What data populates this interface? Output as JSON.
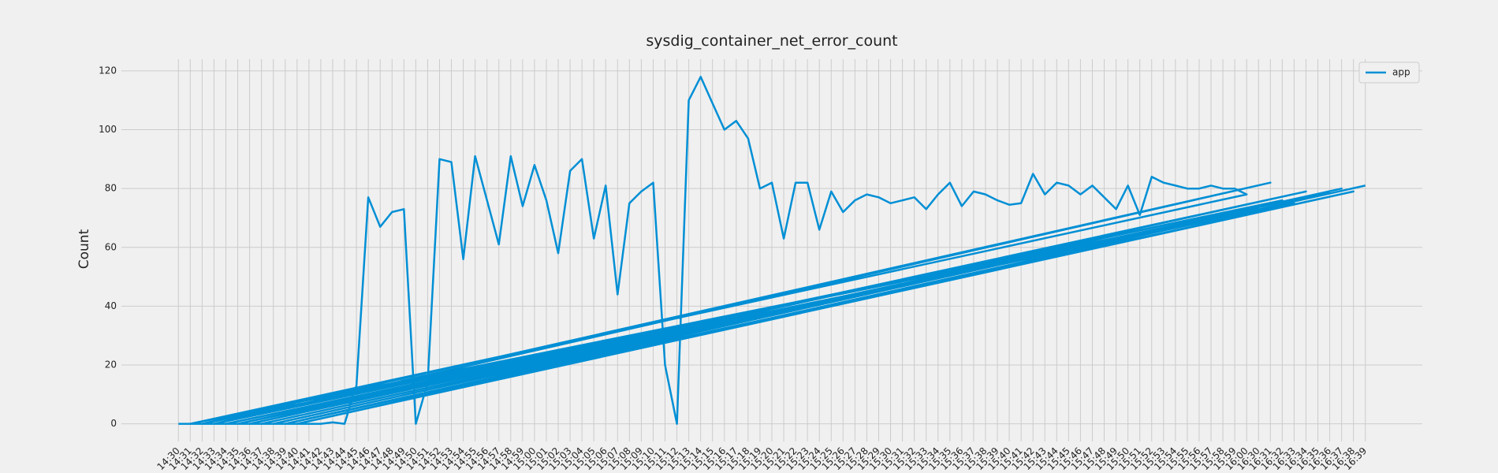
{
  "chart_data": {
    "type": "line",
    "title": "sysdig_container_net_error_count",
    "ylabel": "Count",
    "x": [
      "14:30",
      "14:31",
      "14:32",
      "14:33",
      "14:34",
      "14:35",
      "14:36",
      "14:37",
      "14:38",
      "14:39",
      "14:40",
      "14:41",
      "14:42",
      "14:43",
      "14:44",
      "14:45",
      "14:46",
      "14:47",
      "14:48",
      "14:49",
      "14:50",
      "14:51",
      "14:52",
      "14:53",
      "14:54",
      "14:55",
      "14:56",
      "14:57",
      "14:58",
      "14:59",
      "15:00",
      "15:01",
      "15:02",
      "15:03",
      "15:04",
      "15:05",
      "15:06",
      "15:07",
      "15:08",
      "15:09",
      "15:10",
      "15:11",
      "15:12",
      "15:13",
      "15:14",
      "15:15",
      "15:16",
      "15:17",
      "15:18",
      "15:19",
      "15:20",
      "15:21",
      "15:22",
      "15:23",
      "15:24",
      "15:25",
      "15:26",
      "15:27",
      "15:28",
      "15:29",
      "15:30",
      "15:31",
      "15:32",
      "15:33",
      "15:34",
      "15:35",
      "15:36",
      "15:37",
      "15:38",
      "15:39",
      "15:40",
      "15:41",
      "15:42",
      "15:43",
      "15:44",
      "15:45",
      "15:46",
      "15:47",
      "15:48",
      "15:49",
      "15:50",
      "15:51",
      "15:52",
      "15:53",
      "15:54",
      "15:55",
      "15:56",
      "15:57",
      "15:58",
      "15:59",
      "16:00",
      "14:31",
      "16:30",
      "14:32",
      "16:31",
      "14:33",
      "16:32",
      "14:34",
      "16:33",
      "14:35",
      "16:34",
      "14:36",
      "16:35",
      "14:37",
      "16:36",
      "14:38",
      "16:37",
      "14:39",
      "16:38",
      "14:40",
      "16:39"
    ],
    "series": [
      {
        "name": "app",
        "color": "#008fd5",
        "values": [
          0,
          0,
          0,
          0,
          0,
          0,
          0,
          0,
          0,
          0,
          0,
          0,
          0,
          0.5,
          0,
          13,
          77,
          67,
          72,
          73,
          0,
          14,
          90,
          89,
          56,
          91,
          76,
          61,
          91,
          74,
          88,
          76,
          58,
          86,
          90,
          63,
          81,
          44,
          75,
          79,
          82,
          20,
          0,
          110,
          118,
          109,
          100,
          103,
          97,
          80,
          82,
          63,
          82,
          82,
          66,
          79,
          72,
          76,
          78,
          77,
          75,
          76,
          77,
          73,
          78,
          82,
          74,
          79,
          78,
          76,
          74.5,
          75,
          85,
          78,
          82,
          81,
          78,
          81,
          77,
          73,
          81,
          71,
          84,
          82,
          81,
          80,
          80,
          81,
          80,
          80,
          78,
          0,
          73,
          0,
          82,
          0,
          76,
          0,
          75,
          0,
          79,
          0,
          78,
          0,
          79,
          0,
          80,
          0,
          79,
          0,
          81
        ]
      }
    ],
    "ylim": [
      -6,
      124
    ],
    "yticks": [
      0,
      20,
      40,
      60,
      80,
      100,
      120
    ],
    "grid": true,
    "legend": "upper right"
  }
}
